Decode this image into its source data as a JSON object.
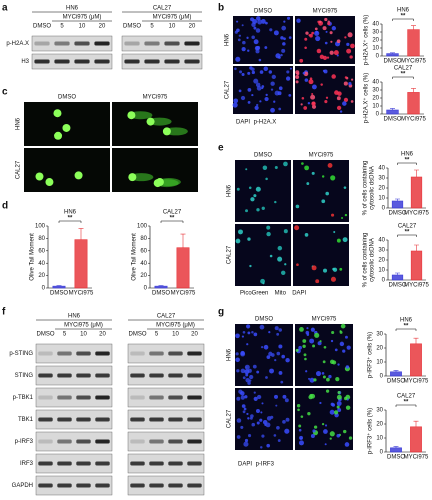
{
  "panel_labels": [
    "a",
    "b",
    "c",
    "d",
    "e",
    "f",
    "g"
  ],
  "a": {
    "cell_lines": [
      "HN6",
      "CAL27"
    ],
    "treatment": "MYCi975 (μM)",
    "lanes": [
      "DMSO",
      "5",
      "10",
      "20"
    ],
    "rows": [
      "p-H2A.X",
      "H3"
    ]
  },
  "b": {
    "conditions": [
      "DMSO",
      "MYCi975"
    ],
    "cell_lines": [
      "HN6",
      "CAL27"
    ],
    "legend": [
      "DAPI",
      "p-H2A.X"
    ],
    "charts": [
      {
        "type": "bar",
        "title": "HN6",
        "ylabel": [
          "p-H2A.X⁺ cells (%)"
        ],
        "categories": [
          "DMSO",
          "MYCi975"
        ],
        "values": [
          3,
          33
        ],
        "errors": [
          1,
          5
        ],
        "colors": [
          "#3d3dd8",
          "#e8383d"
        ],
        "ylim": [
          0,
          40
        ],
        "yticks": [
          0,
          10,
          20,
          30,
          40
        ],
        "annotation": "**"
      },
      {
        "type": "bar",
        "title": "CAL27",
        "ylabel": [
          "p-H2A.X⁺ cells (%)"
        ],
        "categories": [
          "DMSO",
          "MYCi975"
        ],
        "values": [
          5,
          27
        ],
        "errors": [
          2,
          5
        ],
        "colors": [
          "#3d3dd8",
          "#e8383d"
        ],
        "ylim": [
          0,
          40
        ],
        "yticks": [
          0,
          10,
          20,
          30,
          40
        ],
        "annotation": "**"
      }
    ]
  },
  "c": {
    "conditions": [
      "DMSO",
      "MYCi975"
    ],
    "cell_lines": [
      "HN6",
      "CAL27"
    ]
  },
  "d": {
    "charts": [
      {
        "type": "bar",
        "title": "HN6",
        "ylabel": [
          "Olive Tail Moment"
        ],
        "categories": [
          "DMSO",
          "MYCi975"
        ],
        "values": [
          3,
          78
        ],
        "errors": [
          1,
          18
        ],
        "colors": [
          "#3d3dd8",
          "#e8383d"
        ],
        "ylim": [
          0,
          100
        ],
        "yticks": [
          0,
          20,
          40,
          60,
          80,
          100
        ],
        "annotation": "**"
      },
      {
        "type": "bar",
        "title": "CAL27",
        "ylabel": [
          "Olive Tail Moment"
        ],
        "categories": [
          "DMSO",
          "MYCi975"
        ],
        "values": [
          3,
          65
        ],
        "errors": [
          1,
          22
        ],
        "colors": [
          "#3d3dd8",
          "#e8383d"
        ],
        "ylim": [
          0,
          100
        ],
        "yticks": [
          0,
          20,
          40,
          60,
          80,
          100
        ],
        "annotation": "**"
      }
    ]
  },
  "e": {
    "conditions": [
      "DMSO",
      "MYCi975"
    ],
    "cell_lines": [
      "HN6",
      "CAL27"
    ],
    "legend": [
      "PicoGreen",
      "Mito",
      "DAPI"
    ],
    "charts": [
      {
        "type": "bar",
        "title": "HN6",
        "ylabel": [
          "% of cells containing",
          "cytosolic dsDNA"
        ],
        "categories": [
          "DMSO",
          "MYCi975"
        ],
        "values": [
          7,
          31
        ],
        "errors": [
          2,
          7
        ],
        "colors": [
          "#3d3dd8",
          "#e8383d"
        ],
        "ylim": [
          0,
          40
        ],
        "yticks": [
          0,
          10,
          20,
          30,
          40
        ],
        "annotation": "**"
      },
      {
        "type": "bar",
        "title": "CAL27",
        "ylabel": [
          "% of cells containing",
          "cytosolic dsDNA"
        ],
        "categories": [
          "DMSO",
          "MYCi975"
        ],
        "values": [
          5,
          29
        ],
        "errors": [
          2,
          6
        ],
        "colors": [
          "#3d3dd8",
          "#e8383d"
        ],
        "ylim": [
          0,
          40
        ],
        "yticks": [
          0,
          10,
          20,
          30,
          40
        ],
        "annotation": "**"
      }
    ]
  },
  "f": {
    "cell_lines": [
      "HN6",
      "CAL27"
    ],
    "treatment": "MYCi975 (μM)",
    "lanes": [
      "DMSO",
      "5",
      "10",
      "20"
    ],
    "rows": [
      "p-STING",
      "STING",
      "p-TBK1",
      "TBK1",
      "p-IRF3",
      "IRF3",
      "GAPDH"
    ]
  },
  "g": {
    "conditions": [
      "DMSO",
      "MYCi975"
    ],
    "cell_lines": [
      "HN6",
      "CAL27"
    ],
    "legend": [
      "DAPI",
      "p-IRF3"
    ],
    "charts": [
      {
        "type": "bar",
        "title": "HN6",
        "ylabel": [
          "p-IRF3⁺ cells (%)"
        ],
        "categories": [
          "DMSO",
          "MYCi975"
        ],
        "values": [
          3,
          23
        ],
        "errors": [
          1,
          4
        ],
        "colors": [
          "#3d3dd8",
          "#e8383d"
        ],
        "ylim": [
          0,
          30
        ],
        "yticks": [
          0,
          10,
          20,
          30
        ],
        "annotation": "**"
      },
      {
        "type": "bar",
        "title": "CAL27",
        "ylabel": [
          "p-IRF3⁺ cells (%)"
        ],
        "categories": [
          "DMSO",
          "MYCi975"
        ],
        "values": [
          3,
          18
        ],
        "errors": [
          1,
          4
        ],
        "colors": [
          "#3d3dd8",
          "#e8383d"
        ],
        "ylim": [
          0,
          30
        ],
        "yticks": [
          0,
          10,
          20,
          30
        ],
        "annotation": "**"
      }
    ]
  }
}
